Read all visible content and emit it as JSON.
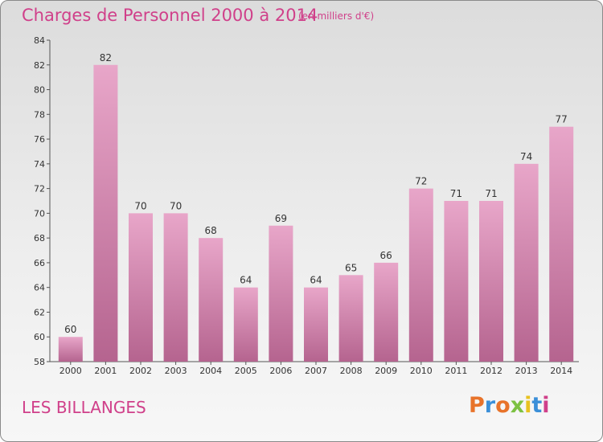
{
  "title": "Charges de Personnel 2000 à 2014",
  "subtitle": "(en milliers d'€)",
  "place": "LES BILLANGES",
  "logo": {
    "text": "Proxiti",
    "letter_colors": [
      "#e8732a",
      "#3b8fd8",
      "#e8732a",
      "#7cc142",
      "#e8c220",
      "#3b8fd8",
      "#d0408a"
    ]
  },
  "colors": {
    "bar_top": "#e8a6c9",
    "bar_bottom": "#b5648f",
    "title": "#d0408a"
  },
  "chart_data": {
    "type": "bar",
    "title": "Charges de Personnel 2000 à 2014",
    "subtitle": "(en milliers d'€)",
    "categories": [
      "2000",
      "2001",
      "2002",
      "2003",
      "2004",
      "2005",
      "2006",
      "2007",
      "2008",
      "2009",
      "2010",
      "2011",
      "2012",
      "2013",
      "2014"
    ],
    "values": [
      60,
      82,
      70,
      70,
      68,
      64,
      69,
      64,
      65,
      66,
      72,
      71,
      71,
      74,
      77
    ],
    "ylim": [
      58,
      84
    ],
    "yticks": [
      58,
      60,
      62,
      64,
      66,
      68,
      70,
      72,
      74,
      76,
      78,
      80,
      82,
      84
    ],
    "xlabel": "",
    "ylabel": "",
    "grid": false,
    "data_labels": true
  }
}
